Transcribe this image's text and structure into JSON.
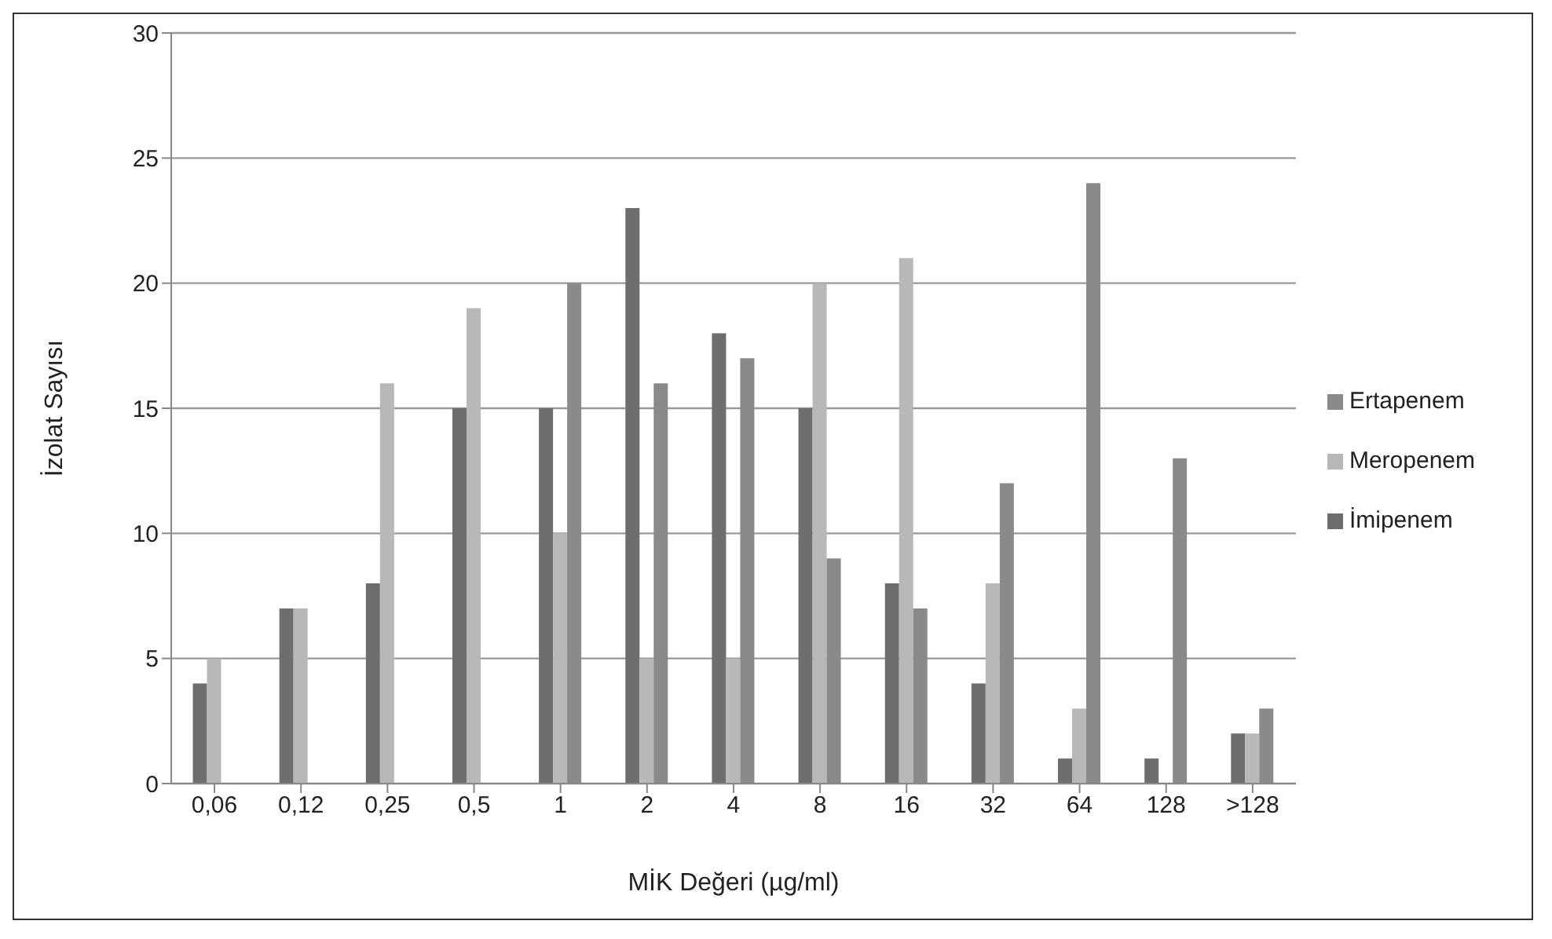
{
  "chart_data": {
    "type": "bar",
    "xlabel": "MİK Değeri (µg/ml)",
    "ylabel": "İzolat Sayısı",
    "categories": [
      "0,06",
      "0,12",
      "0,25",
      "0,5",
      "1",
      "2",
      "4",
      "8",
      "16",
      "32",
      "64",
      "128",
      ">128"
    ],
    "series": [
      {
        "name": "İmipenem",
        "color": "#6e6e6e",
        "values": [
          4,
          7,
          8,
          15,
          15,
          23,
          18,
          15,
          8,
          4,
          1,
          1,
          2
        ]
      },
      {
        "name": "Meropenem",
        "color": "#b8b8b8",
        "values": [
          5,
          7,
          16,
          19,
          10,
          5,
          5,
          20,
          21,
          8,
          3,
          null,
          2
        ]
      },
      {
        "name": "Ertapenem",
        "color": "#8a8a8a",
        "values": [
          null,
          null,
          null,
          null,
          20,
          16,
          17,
          9,
          7,
          12,
          24,
          13,
          3
        ]
      }
    ],
    "ylim": [
      0,
      30
    ],
    "yticks": [
      0,
      5,
      10,
      15,
      20,
      25,
      30
    ],
    "grid": "y",
    "legend": "right"
  }
}
